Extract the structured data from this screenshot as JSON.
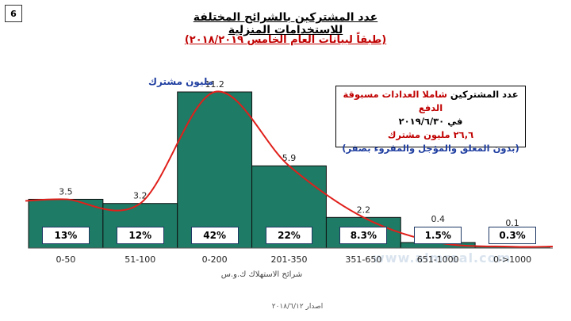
{
  "page_number": "6",
  "title": "عدد المشتركين بالشرائح المختلفة للاستخدامات المنزلية",
  "subtitle": "(طبقاً لبيانات العام الخامس ٢٠١٨/٢٠١٩)",
  "info_box": {
    "line1_prefix": "عدد المشتركين ",
    "line1_highlight": "شاملا العدادات مسبوقة الدفع",
    "line2": "في ٢٠١٩/٦/٣٠",
    "line3": "٢٦,٦ مليون مشترك",
    "line4": "(بدون المغلق والمؤجل والمقروء بصفر)"
  },
  "unit_label": "مليون مشترك",
  "xaxis_title": "شرائح الاستهلاك ك.و.س",
  "footer": "اصدار ٢٠١٨/٦/١٢",
  "watermark": "www.almrsal.com",
  "colors": {
    "bar_fill": "#1e7b65",
    "bar_stroke": "#111111",
    "curve": "#e0201b",
    "title": "#000000",
    "subtitle": "#c00000",
    "blue_text": "#1f3ea0"
  },
  "chart_data": {
    "type": "bar",
    "categories": [
      "0-50",
      "51-100",
      "0-200",
      "201-350",
      "351-650",
      "651-1000",
      "0->1000"
    ],
    "values": [
      3.5,
      3.2,
      11.2,
      5.9,
      2.2,
      0.4,
      0.1
    ],
    "value_labels": [
      "3.5",
      "3.2",
      "11.2",
      "5.9",
      "2.2",
      "0.4",
      "0.1"
    ],
    "percentages": [
      "13%",
      "12%",
      "42%",
      "22%",
      "8.3%",
      "1.5%",
      "0.3%"
    ],
    "ylim": [
      0,
      12
    ],
    "grid": false,
    "trend_curve": true
  }
}
